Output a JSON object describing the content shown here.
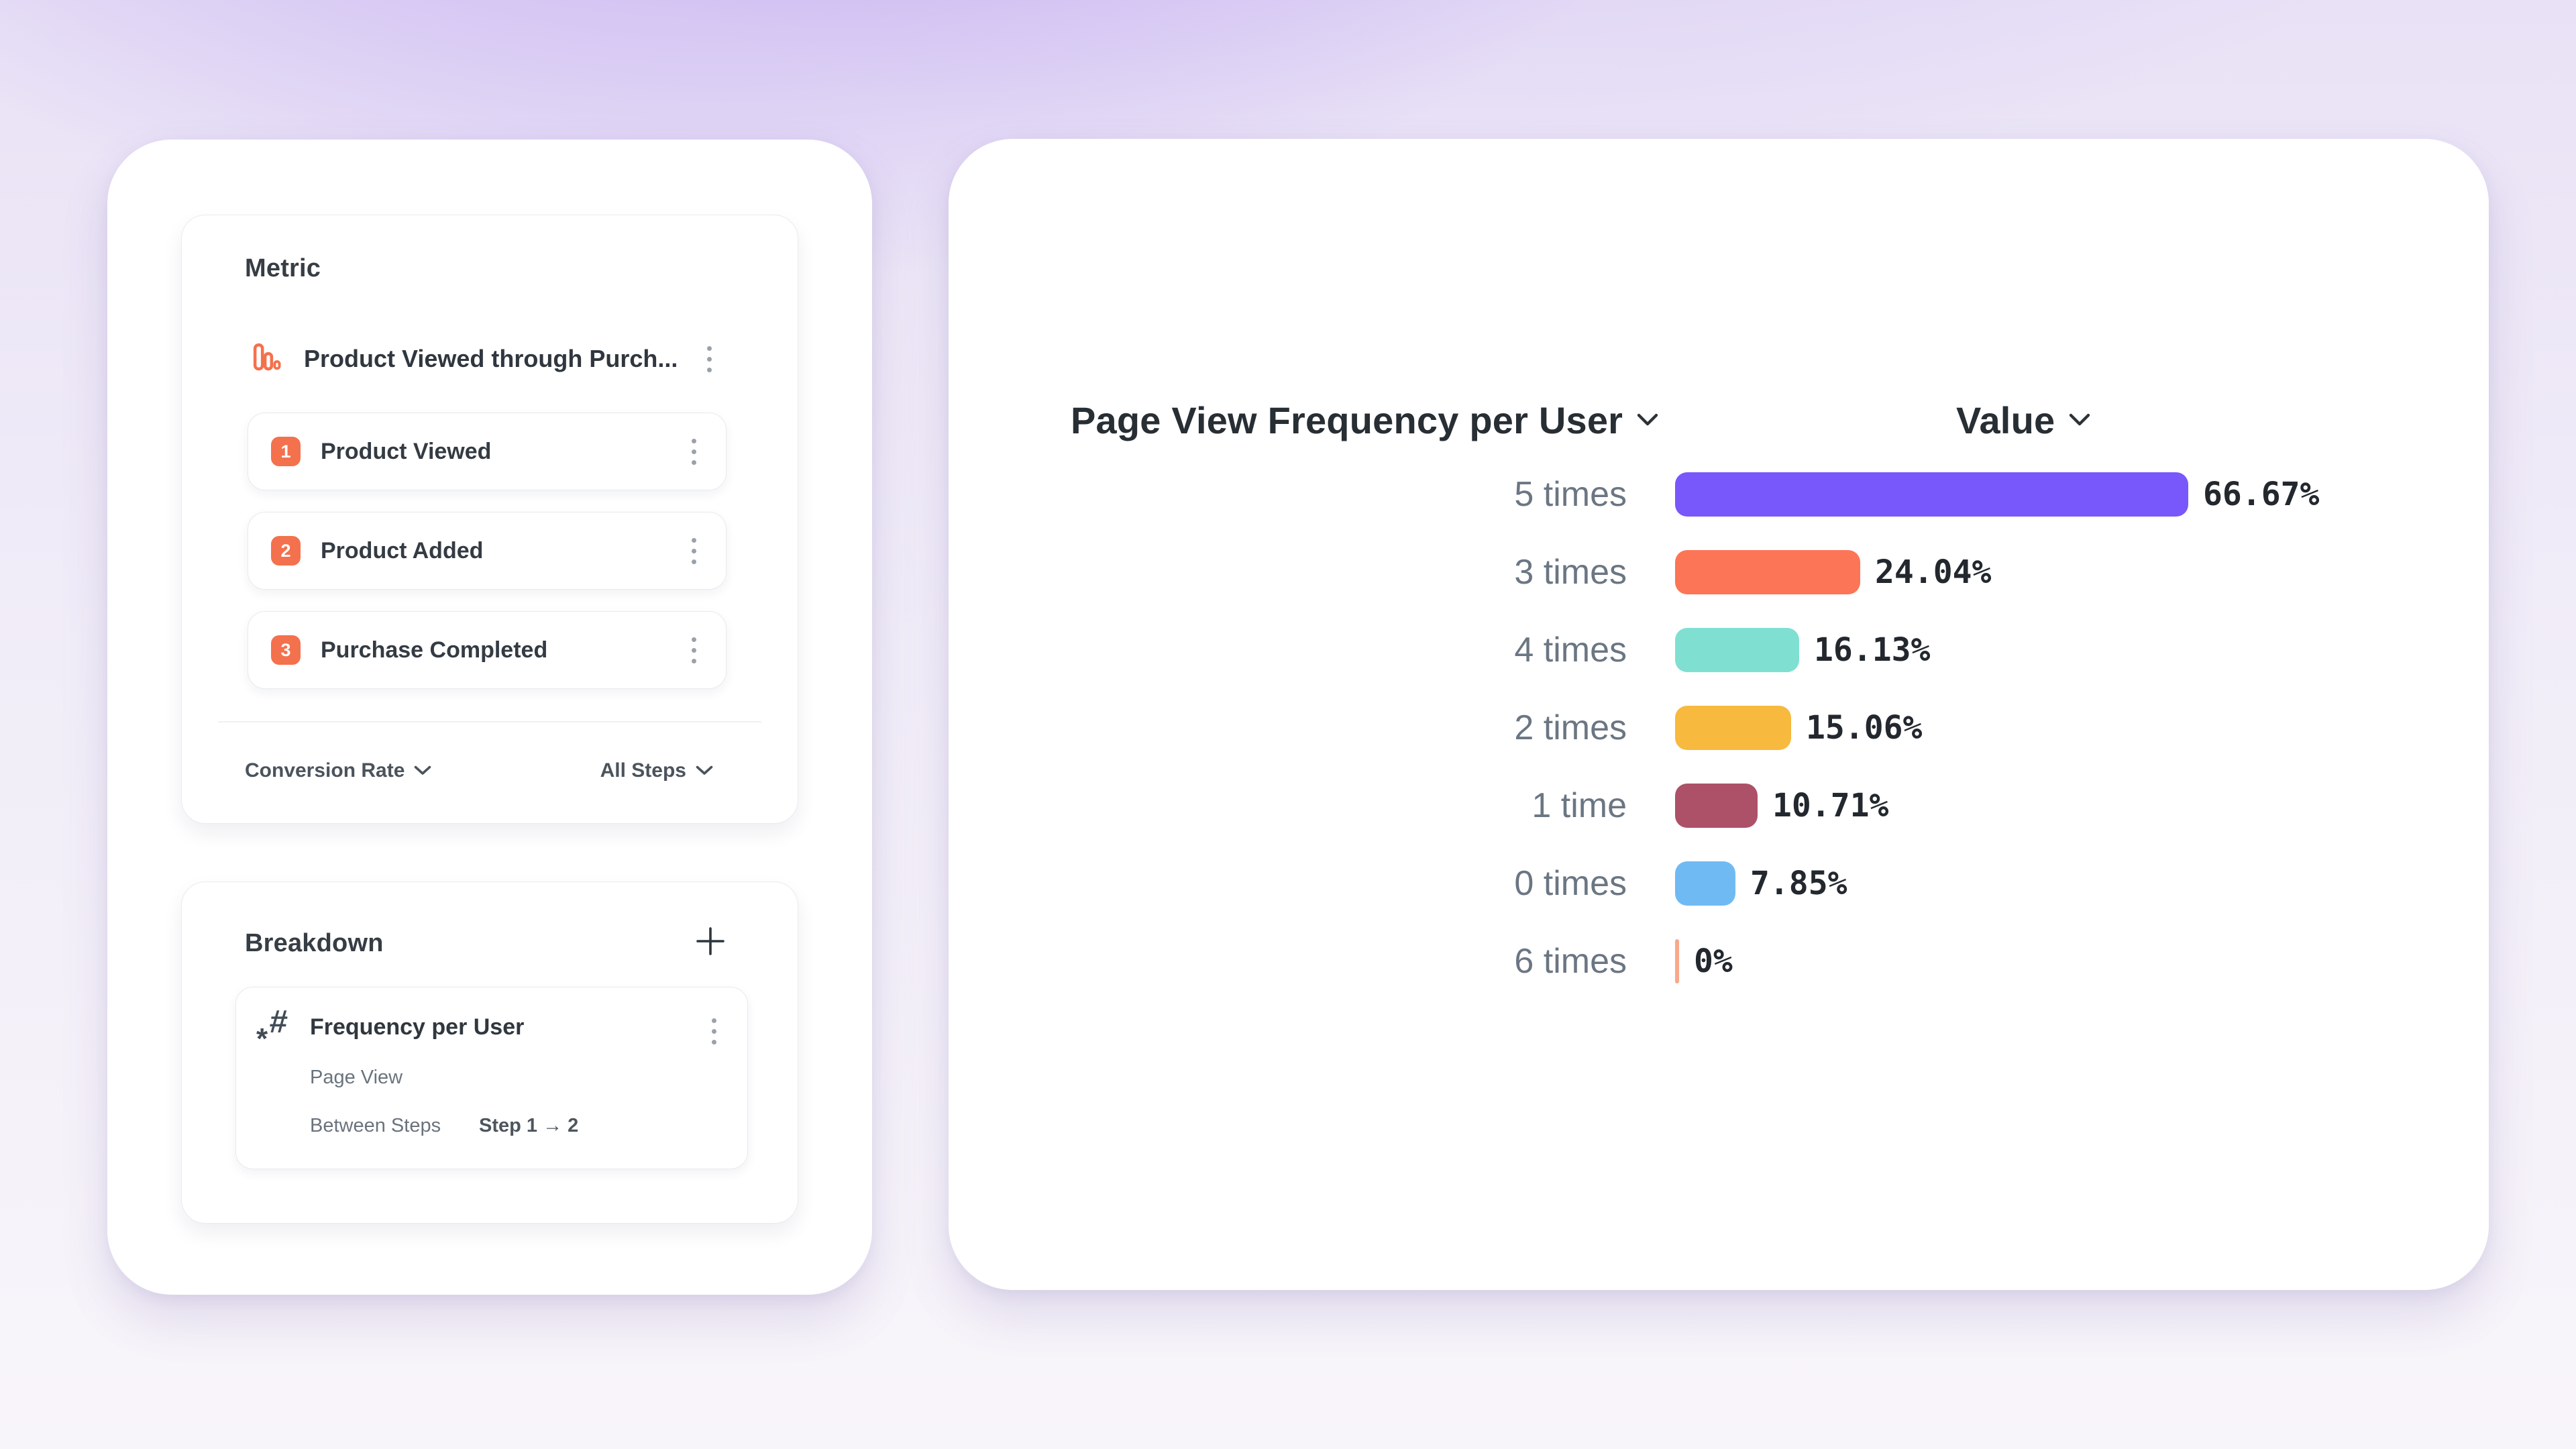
{
  "metric_panel": {
    "title": "Metric",
    "funnel": {
      "name": "Product Viewed through Purch...",
      "steps": [
        {
          "number": "1",
          "label": "Product Viewed"
        },
        {
          "number": "2",
          "label": "Product Added"
        },
        {
          "number": "3",
          "label": "Purchase Completed"
        }
      ],
      "measure_label": "Conversion Rate",
      "scope_label": "All Steps"
    }
  },
  "breakdown_panel": {
    "title": "Breakdown",
    "item": {
      "title": "Frequency per User",
      "event": "Page View",
      "between_steps_label": "Between Steps",
      "step_range": "Step 1 → 2"
    }
  },
  "chart_panel": {
    "series_header": "Page View Frequency per User",
    "value_header": "Value"
  },
  "chart_data": {
    "type": "bar",
    "orientation": "horizontal",
    "title": "Page View Frequency per User",
    "value_column": "Value",
    "categories": [
      "5 times",
      "3 times",
      "4 times",
      "2 times",
      "1 time",
      "0 times",
      "6 times"
    ],
    "values": [
      66.67,
      24.04,
      16.13,
      15.06,
      10.71,
      7.85,
      0
    ],
    "value_labels": [
      "66.67%",
      "24.04%",
      "16.13%",
      "15.06%",
      "10.71%",
      "7.85%",
      "0%"
    ],
    "bar_colors": [
      "#7857FB",
      "#FC7556",
      "#7FE0D2",
      "#F7B93E",
      "#AC5168",
      "#70BAF4",
      "#F9A88C"
    ],
    "xlim": [
      0,
      66.67
    ],
    "grid": false,
    "legend": false
  },
  "colors": {
    "step_badge": "#F4714D",
    "funnel_icon": "#F4714D",
    "accent_background": "#BDA4EE"
  }
}
